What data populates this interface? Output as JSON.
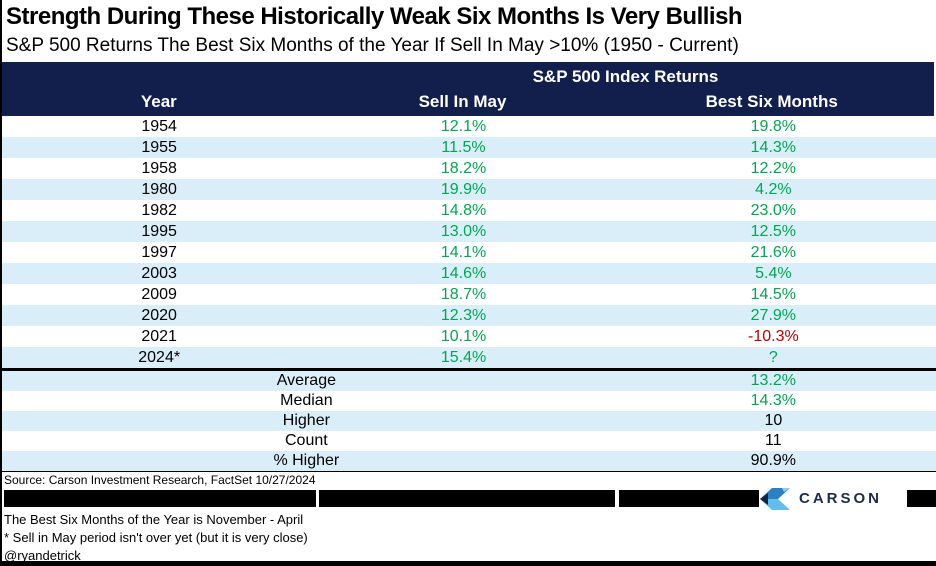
{
  "header": {
    "title": "Strength During These Historically Weak Six Months Is Very Bullish",
    "subtitle": "S&P 500 Returns The Best Six Months of the Year If Sell In May >10% (1950 - Current)"
  },
  "table": {
    "group_header": "S&P 500 Index Returns",
    "columns": {
      "year": "Year",
      "sell_in_may": "Sell In May",
      "best_six_months": "Best Six Months"
    },
    "rows": [
      {
        "year": "1954",
        "sell_in_may": "12.1%",
        "best_six_months": "19.8%",
        "best_color": "green"
      },
      {
        "year": "1955",
        "sell_in_may": "11.5%",
        "best_six_months": "14.3%",
        "best_color": "green"
      },
      {
        "year": "1958",
        "sell_in_may": "18.2%",
        "best_six_months": "12.2%",
        "best_color": "green"
      },
      {
        "year": "1980",
        "sell_in_may": "19.9%",
        "best_six_months": "4.2%",
        "best_color": "green"
      },
      {
        "year": "1982",
        "sell_in_may": "14.8%",
        "best_six_months": "23.0%",
        "best_color": "green"
      },
      {
        "year": "1995",
        "sell_in_may": "13.0%",
        "best_six_months": "12.5%",
        "best_color": "green"
      },
      {
        "year": "1997",
        "sell_in_may": "14.1%",
        "best_six_months": "21.6%",
        "best_color": "green"
      },
      {
        "year": "2003",
        "sell_in_may": "14.6%",
        "best_six_months": "5.4%",
        "best_color": "green"
      },
      {
        "year": "2009",
        "sell_in_may": "18.7%",
        "best_six_months": "14.5%",
        "best_color": "green"
      },
      {
        "year": "2020",
        "sell_in_may": "12.3%",
        "best_six_months": "27.9%",
        "best_color": "green"
      },
      {
        "year": "2021",
        "sell_in_may": "10.1%",
        "best_six_months": "-10.3%",
        "best_color": "red"
      },
      {
        "year": "2024*",
        "sell_in_may": "15.4%",
        "best_six_months": "?",
        "best_color": "green"
      }
    ],
    "summary": [
      {
        "label": "Average",
        "value": "13.2%",
        "color": "green"
      },
      {
        "label": "Median",
        "value": "14.3%",
        "color": "green"
      },
      {
        "label": "Higher",
        "value": "10",
        "color": "black"
      },
      {
        "label": "Count",
        "value": "11",
        "color": "black"
      },
      {
        "label": "% Higher",
        "value": "90.9%",
        "color": "black"
      }
    ]
  },
  "source": "Source: Carson Investment Research, FactSet 10/27/2024",
  "logo": {
    "text": "CARSON"
  },
  "footnotes": [
    "The Best Six Months of the Year is November - April",
    "* Sell in May period isn't over yet (but it is very close)",
    "@ryandetrick"
  ],
  "colors": {
    "header_navy": "#121F4D",
    "row_alt_blue": "#D9EEF9",
    "positive_green": "#00A651",
    "negative_red": "#C00000",
    "logo_navy": "#1B2B4D",
    "logo_blue_top": "#2E7FC2",
    "logo_blue_bottom": "#62BDEC"
  },
  "chart_data": {
    "type": "table",
    "title": "Strength During These Historically Weak Six Months Is Very Bullish",
    "subtitle": "S&P 500 Returns The Best Six Months of the Year If Sell In May >10% (1950 - Current)",
    "group_header": "S&P 500 Index Returns",
    "columns": [
      "Year",
      "Sell In May",
      "Best Six Months"
    ],
    "rows": [
      [
        "1954",
        "12.1%",
        "19.8%"
      ],
      [
        "1955",
        "11.5%",
        "14.3%"
      ],
      [
        "1958",
        "18.2%",
        "12.2%"
      ],
      [
        "1980",
        "19.9%",
        "4.2%"
      ],
      [
        "1982",
        "14.8%",
        "23.0%"
      ],
      [
        "1995",
        "13.0%",
        "12.5%"
      ],
      [
        "1997",
        "14.1%",
        "21.6%"
      ],
      [
        "2003",
        "14.6%",
        "5.4%"
      ],
      [
        "2009",
        "18.7%",
        "14.5%"
      ],
      [
        "2020",
        "12.3%",
        "27.9%"
      ],
      [
        "2021",
        "10.1%",
        "-10.3%"
      ],
      [
        "2024*",
        "15.4%",
        "?"
      ]
    ],
    "summary": [
      [
        "Average",
        "13.2%"
      ],
      [
        "Median",
        "14.3%"
      ],
      [
        "Higher",
        "10"
      ],
      [
        "Count",
        "11"
      ],
      [
        "% Higher",
        "90.9%"
      ]
    ]
  }
}
